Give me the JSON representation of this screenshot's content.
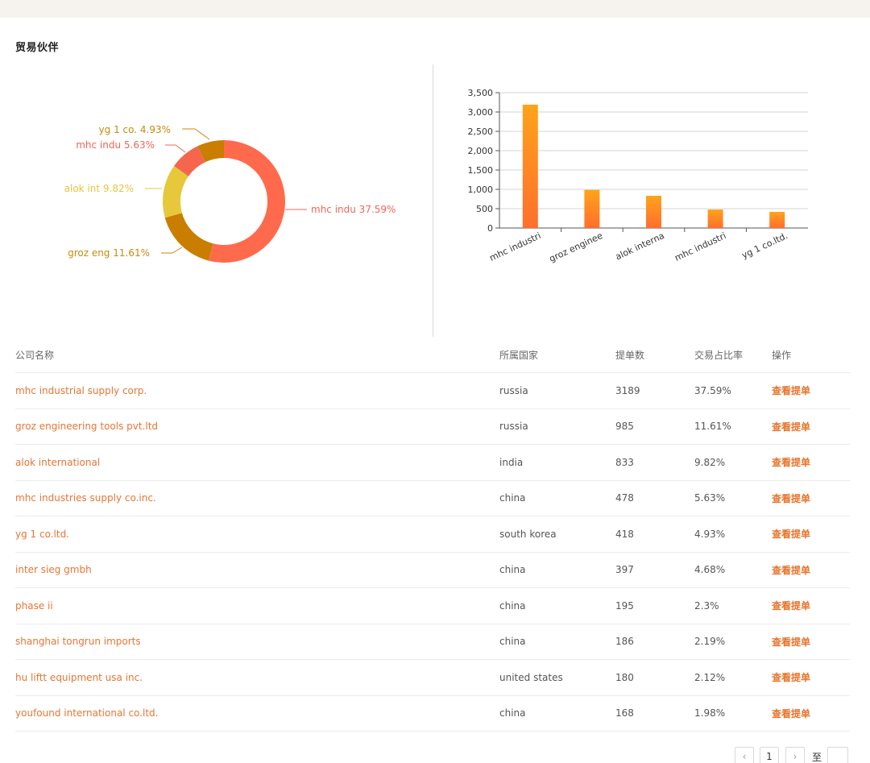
{
  "section": {
    "title": "贸易伙伴"
  },
  "pie": {
    "labels": [
      {
        "text": "yg 1 co. 4.93%",
        "color": "#c88a0e"
      },
      {
        "text": "mhc indu 5.63%",
        "color": "#f0665a"
      },
      {
        "text": "alok int 9.82%",
        "color": "#e7c43b"
      },
      {
        "text": "groz eng 11.61%",
        "color": "#c88a0e"
      },
      {
        "text": "mhc indu 37.59%",
        "color": "#f0665a"
      }
    ]
  },
  "chart_data": [
    {
      "type": "pie",
      "categories": [
        "mhc indu",
        "groz eng",
        "alok int",
        "mhc indu",
        "yg 1 co."
      ],
      "values": [
        37.59,
        11.61,
        9.82,
        5.63,
        4.93
      ],
      "colors": [
        "#ff6a4d",
        "#c97e00",
        "#e6c83a",
        "#f5664e",
        "#c97e00"
      ],
      "hole": true
    },
    {
      "type": "bar",
      "categories": [
        "mhc industri",
        "groz enginee",
        "alok interna",
        "mhc industri",
        "yg 1 co.ltd."
      ],
      "values": [
        3189,
        985,
        833,
        478,
        418
      ],
      "ylim": [
        0,
        3500
      ],
      "yticks": [
        "0",
        "500",
        "1,000",
        "1,500",
        "2,000",
        "2,500",
        "3,000",
        "3,500"
      ],
      "grid": true,
      "colors": [
        "#ffa31a",
        "#ff6e2e"
      ]
    }
  ],
  "table": {
    "headers": {
      "name": "公司名称",
      "country": "所属国家",
      "count": "提单数",
      "ratio": "交易占比率",
      "op": "操作"
    },
    "rows": [
      {
        "name": "mhc industrial supply corp.",
        "country": "russia",
        "count": "3189",
        "ratio": "37.59%",
        "op": "查看提单"
      },
      {
        "name": "groz engineering tools pvt.ltd",
        "country": "russia",
        "count": "985",
        "ratio": "11.61%",
        "op": "查看提单"
      },
      {
        "name": "alok international",
        "country": "india",
        "count": "833",
        "ratio": "9.82%",
        "op": "查看提单"
      },
      {
        "name": "mhc industries supply co.inc.",
        "country": "china",
        "count": "478",
        "ratio": "5.63%",
        "op": "查看提单"
      },
      {
        "name": "yg 1 co.ltd.",
        "country": "south korea",
        "count": "418",
        "ratio": "4.93%",
        "op": "查看提单"
      },
      {
        "name": "inter sieg gmbh",
        "country": "china",
        "count": "397",
        "ratio": "4.68%",
        "op": "查看提单"
      },
      {
        "name": "phase ii",
        "country": "china",
        "count": "195",
        "ratio": "2.3%",
        "op": "查看提单"
      },
      {
        "name": "shanghai tongrun imports",
        "country": "china",
        "count": "186",
        "ratio": "2.19%",
        "op": "查看提单"
      },
      {
        "name": "hu liftt equipment usa inc.",
        "country": "united states",
        "count": "180",
        "ratio": "2.12%",
        "op": "查看提单"
      },
      {
        "name": "youfound international co.ltd.",
        "country": "china",
        "count": "168",
        "ratio": "1.98%",
        "op": "查看提单"
      }
    ]
  },
  "pagination": {
    "prev": "‹",
    "current": "1",
    "next": "›",
    "goto_label": "至"
  }
}
